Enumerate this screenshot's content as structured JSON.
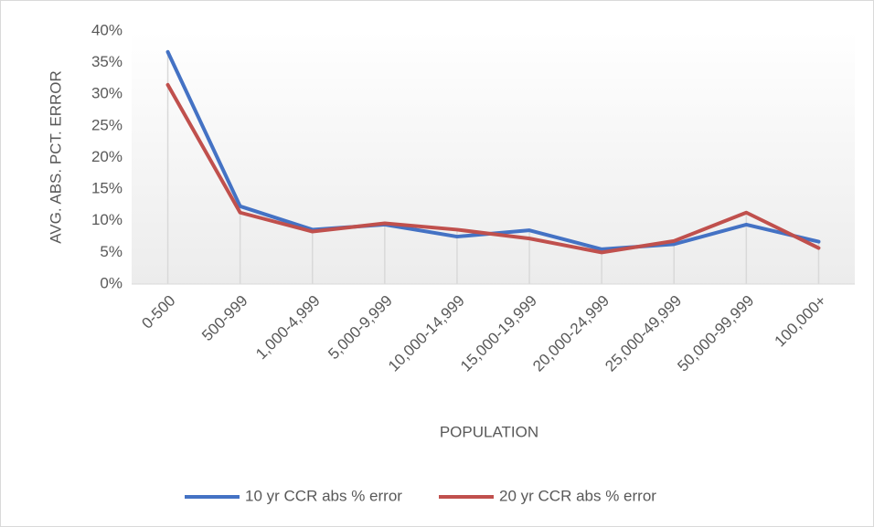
{
  "chart_data": {
    "type": "line",
    "x_label": "POPULATION",
    "y_label": "AVG. ABS. PCT. ERROR",
    "categories": [
      "0-500",
      "500-999",
      "1,000-4,999",
      "5,000-9,999",
      "10,000-14,999",
      "15,000-19,999",
      "20,000-24,999",
      "25,000-49,999",
      "50,000-99,999",
      "100,000+"
    ],
    "series": [
      {
        "name": "10 yr CCR abs % error",
        "color": "#4472c4",
        "values": [
          36.7,
          12.3,
          8.6,
          9.4,
          7.5,
          8.5,
          5.5,
          6.3,
          9.4,
          6.7
        ]
      },
      {
        "name": "20 yr CCR abs % error",
        "color": "#c0504d",
        "values": [
          31.5,
          11.3,
          8.3,
          9.6,
          8.6,
          7.2,
          5.0,
          6.8,
          11.3,
          5.7
        ]
      }
    ],
    "ylim": [
      0,
      40
    ],
    "yticks": [
      {
        "value": 0,
        "label": "0%"
      },
      {
        "value": 5,
        "label": "5%"
      },
      {
        "value": 10,
        "label": "10%"
      },
      {
        "value": 15,
        "label": "15%"
      },
      {
        "value": 20,
        "label": "20%"
      },
      {
        "value": 25,
        "label": "25%"
      },
      {
        "value": 30,
        "label": "30%"
      },
      {
        "value": 35,
        "label": "35%"
      },
      {
        "value": 40,
        "label": "40%"
      }
    ],
    "legend": "bottom"
  }
}
